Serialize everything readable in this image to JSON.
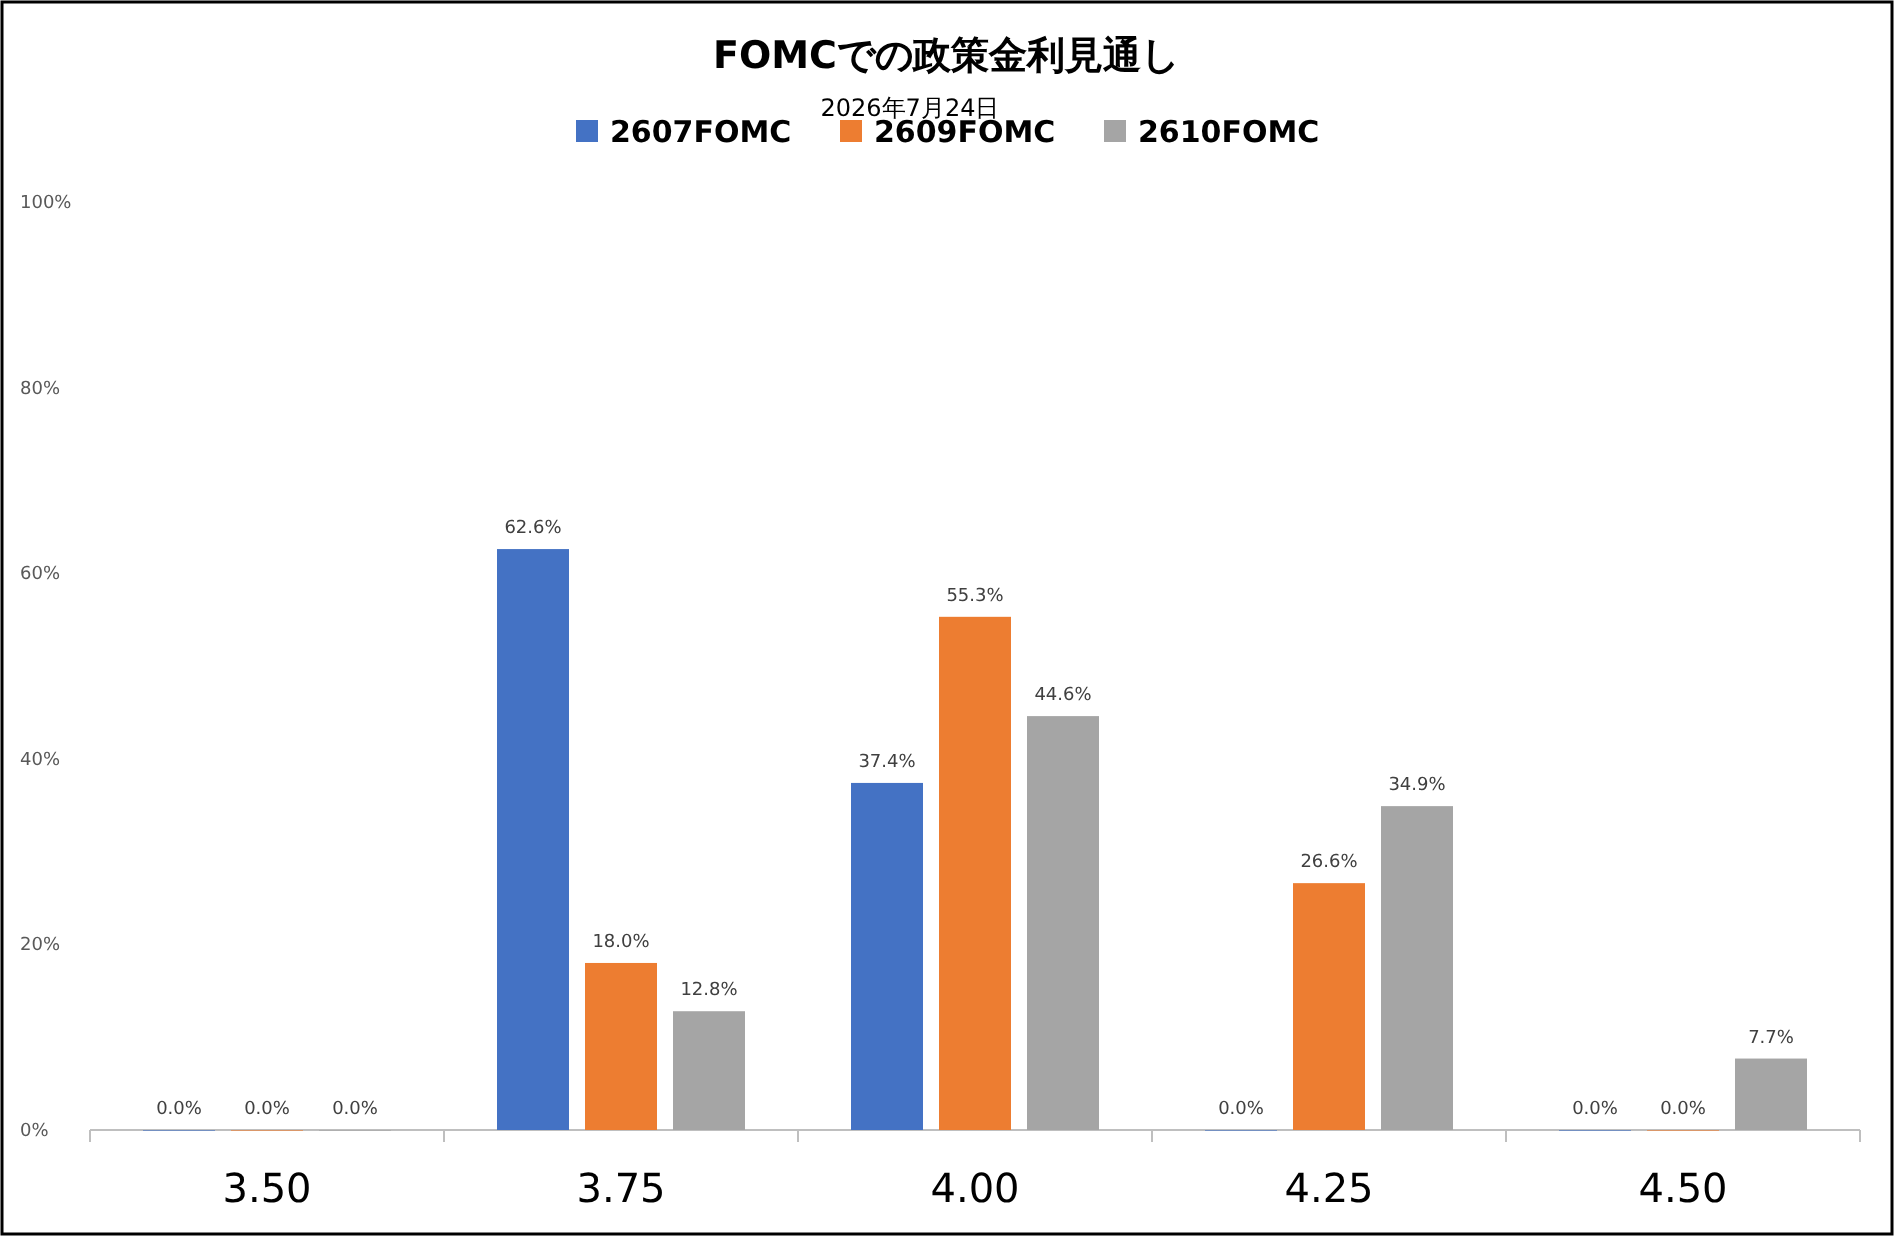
{
  "chart_data": {
    "type": "bar",
    "title": "FOMCでの政策金利見通し",
    "subtitle": "2026年7月24日",
    "categories": [
      "3.50",
      "3.75",
      "4.00",
      "4.25",
      "4.50"
    ],
    "series": [
      {
        "name": "2607FOMC",
        "color": "#4472c4",
        "values": [
          0,
          62.6,
          37.4,
          0,
          0
        ],
        "value_labels": [
          "0.0%",
          "62.6%",
          "37.4%",
          "0.0%",
          "0.0%"
        ]
      },
      {
        "name": "2609FOMC",
        "color": "#ed7d31",
        "values": [
          0,
          18.0,
          55.3,
          26.6,
          0
        ],
        "value_labels": [
          "0.0%",
          "18.0%",
          "55.3%",
          "26.6%",
          "0.0%"
        ]
      },
      {
        "name": "2610FOMC",
        "color": "#a5a5a5",
        "values": [
          0,
          12.8,
          44.6,
          34.9,
          7.7
        ],
        "value_labels": [
          "0.0%",
          "12.8%",
          "44.6%",
          "34.9%",
          "7.7%"
        ]
      }
    ],
    "ylim": [
      0,
      100
    ],
    "yticks": [
      {
        "value": 0,
        "label": "0%"
      },
      {
        "value": 20,
        "label": "20%"
      },
      {
        "value": 40,
        "label": "40%"
      },
      {
        "value": 60,
        "label": "60%"
      },
      {
        "value": 80,
        "label": "80%"
      },
      {
        "value": 100,
        "label": "100%"
      }
    ],
    "grid": false,
    "legend": "top"
  }
}
